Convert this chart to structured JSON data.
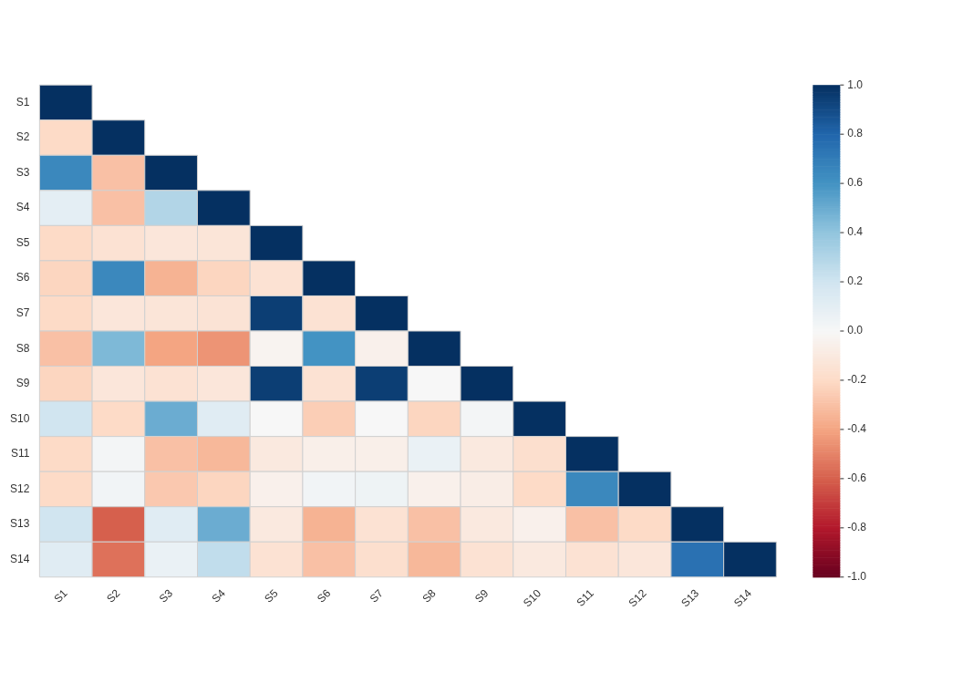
{
  "chart_data": {
    "type": "heatmap",
    "categories": [
      "S1",
      "S2",
      "S3",
      "S4",
      "S5",
      "S6",
      "S7",
      "S8",
      "S9",
      "S10",
      "S11",
      "S12",
      "S13",
      "S14"
    ],
    "y_categories": [
      "S1",
      "S2",
      "S3",
      "S4",
      "S5",
      "S6",
      "S7",
      "S8",
      "S9",
      "S10",
      "S11",
      "S12",
      "S13",
      "S14"
    ],
    "cells": [
      [
        1,
        null,
        null,
        null,
        null,
        null,
        null,
        null,
        null,
        null,
        null,
        null,
        null,
        null
      ],
      [
        -0.2,
        1,
        null,
        null,
        null,
        null,
        null,
        null,
        null,
        null,
        null,
        null,
        null,
        null
      ],
      [
        0.65,
        -0.3,
        1,
        null,
        null,
        null,
        null,
        null,
        null,
        null,
        null,
        null,
        null,
        null
      ],
      [
        0.1,
        -0.3,
        0.3,
        1,
        null,
        null,
        null,
        null,
        null,
        null,
        null,
        null,
        null,
        null
      ],
      [
        -0.2,
        -0.15,
        -0.12,
        -0.13,
        1,
        null,
        null,
        null,
        null,
        null,
        null,
        null,
        null,
        null
      ],
      [
        -0.22,
        0.65,
        -0.35,
        -0.22,
        -0.15,
        1,
        null,
        null,
        null,
        null,
        null,
        null,
        null,
        null
      ],
      [
        -0.2,
        -0.12,
        -0.13,
        -0.14,
        0.95,
        -0.15,
        1,
        null,
        null,
        null,
        null,
        null,
        null,
        null
      ],
      [
        -0.3,
        0.45,
        -0.4,
        -0.45,
        -0.03,
        0.6,
        -0.05,
        1,
        null,
        null,
        null,
        null,
        null,
        null
      ],
      [
        -0.22,
        -0.12,
        -0.15,
        -0.12,
        0.95,
        -0.15,
        0.95,
        0.0,
        1,
        null,
        null,
        null,
        null,
        null
      ],
      [
        0.2,
        -0.2,
        0.5,
        0.12,
        0.0,
        -0.25,
        0.0,
        -0.22,
        0.02,
        1,
        null,
        null,
        null,
        null
      ],
      [
        -0.2,
        0.02,
        -0.3,
        -0.33,
        -0.1,
        -0.06,
        -0.06,
        0.07,
        -0.1,
        -0.17,
        1,
        null,
        null,
        null
      ],
      [
        -0.2,
        0.03,
        -0.27,
        -0.22,
        -0.05,
        0.03,
        0.05,
        -0.05,
        -0.07,
        -0.2,
        0.65,
        1,
        null,
        null
      ],
      [
        0.2,
        -0.6,
        0.12,
        0.5,
        -0.1,
        -0.35,
        -0.15,
        -0.3,
        -0.1,
        -0.05,
        -0.3,
        -0.2,
        1,
        null
      ],
      [
        0.12,
        -0.55,
        0.07,
        0.25,
        -0.15,
        -0.3,
        -0.17,
        -0.33,
        -0.15,
        -0.1,
        -0.15,
        -0.12,
        0.75,
        1
      ]
    ],
    "clim": [
      -1,
      1
    ],
    "cticks": [
      {
        "value": -1,
        "label": "-1.0"
      },
      {
        "value": -0.8,
        "label": "-0.8"
      },
      {
        "value": -0.6,
        "label": "-0.6"
      },
      {
        "value": -0.4,
        "label": "-0.4"
      },
      {
        "value": -0.2,
        "label": "-0.2"
      },
      {
        "value": 0,
        "label": "0.0"
      },
      {
        "value": 0.2,
        "label": "0.2"
      },
      {
        "value": 0.4,
        "label": "0.4"
      },
      {
        "value": 0.6,
        "label": "0.6"
      },
      {
        "value": 0.8,
        "label": "0.8"
      },
      {
        "value": 1,
        "label": "1.0"
      }
    ],
    "grid": false,
    "legend": false
  }
}
